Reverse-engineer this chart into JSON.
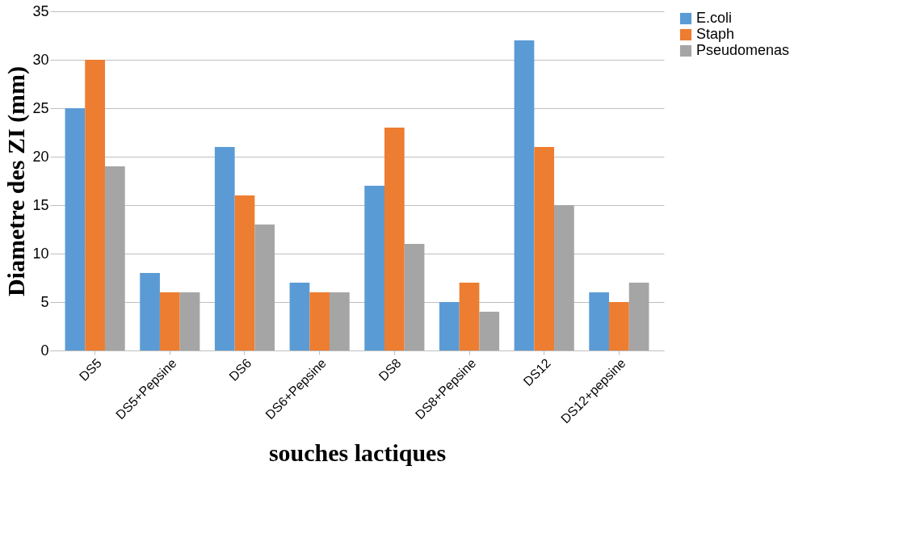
{
  "chart_data": {
    "type": "bar",
    "xlabel": "souches lactiques",
    "ylabel": "Diametre des  ZI (mm)",
    "categories": [
      "DS5",
      "DS5+Pepsine",
      "DS6",
      "DS6+Pepsine",
      "DS8",
      "DS8+Pepsine",
      "DS12",
      "DS12+pepsine"
    ],
    "series": [
      {
        "name": "E.coli",
        "color": "#5b9bd5",
        "values": [
          25,
          8,
          21,
          7,
          17,
          5,
          32,
          6
        ]
      },
      {
        "name": "Staph",
        "color": "#ed7d31",
        "values": [
          30,
          6,
          16,
          6,
          23,
          7,
          21,
          5
        ]
      },
      {
        "name": "Pseudomenas",
        "color": "#a5a5a5",
        "values": [
          19,
          6,
          13,
          6,
          11,
          4,
          15,
          7
        ]
      }
    ],
    "ylim": [
      0,
      35
    ],
    "yticks": [
      0,
      5,
      10,
      15,
      20,
      25,
      30,
      35
    ],
    "grid": "y",
    "legend": "right"
  }
}
